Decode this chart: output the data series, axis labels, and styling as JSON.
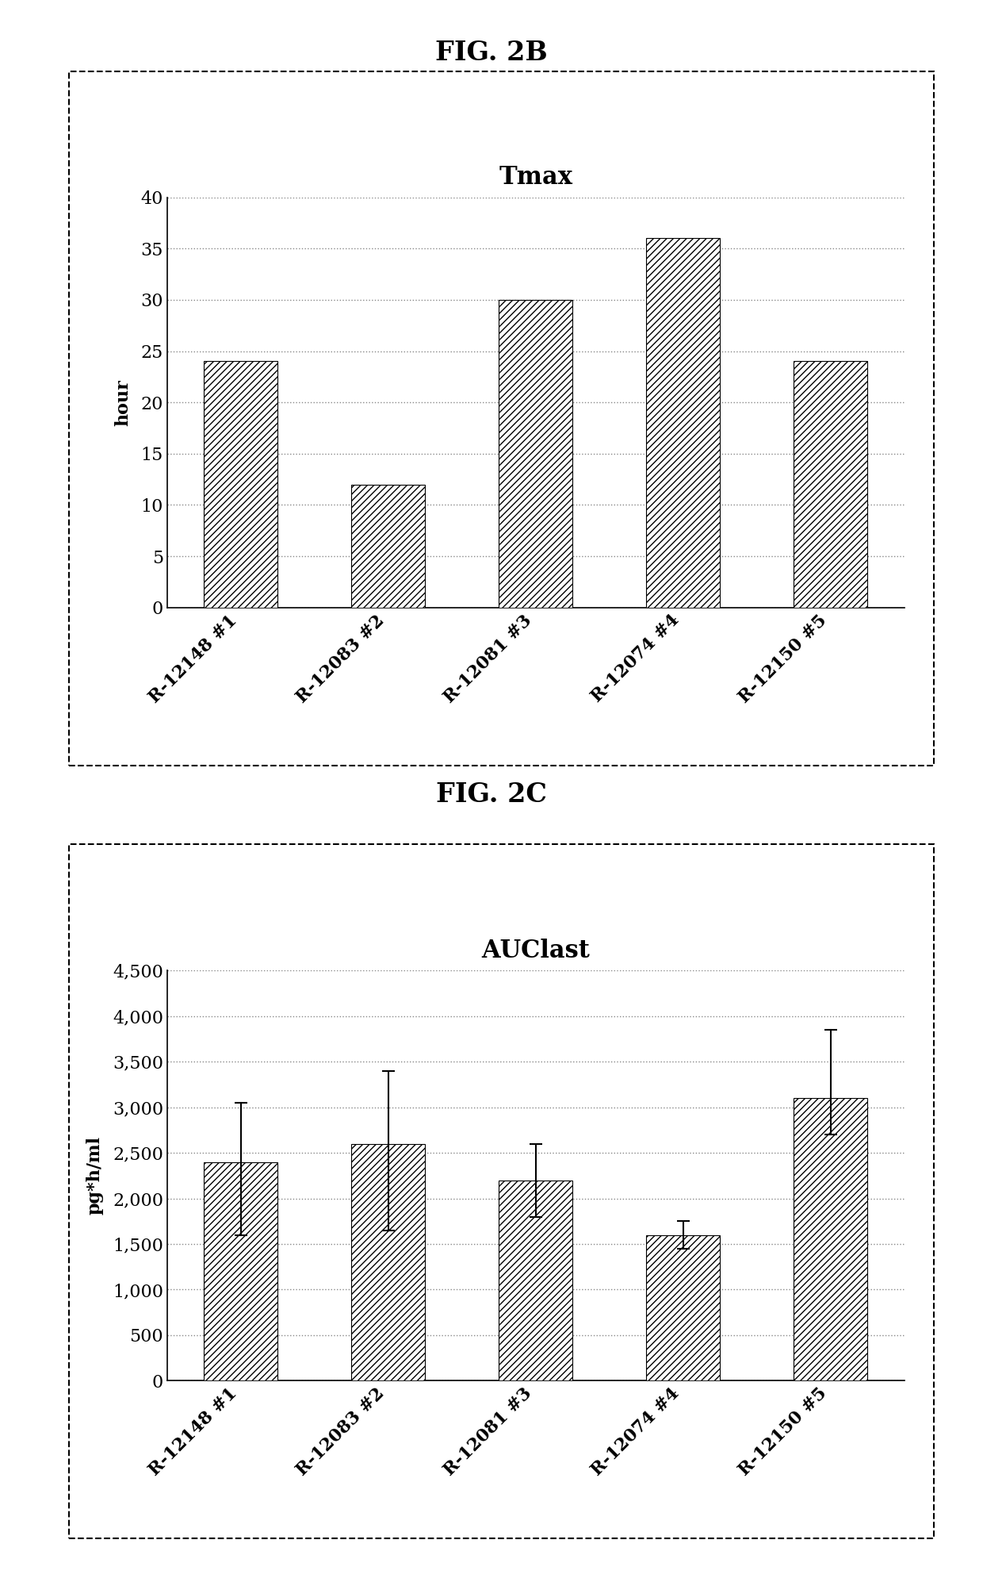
{
  "fig2b_title": "FIG. 2B",
  "fig2b_chart_title": "Tmax",
  "fig2b_ylabel": "hour",
  "fig2b_categories": [
    "R-12148 #1",
    "R-12083 #2",
    "R-12081 #3",
    "R-12074 #4",
    "R-12150 #5"
  ],
  "fig2b_values": [
    24,
    12,
    30,
    36,
    24
  ],
  "fig2b_ylim": [
    0,
    40
  ],
  "fig2b_yticks": [
    0,
    5,
    10,
    15,
    20,
    25,
    30,
    35,
    40
  ],
  "fig2c_title": "FIG. 2C",
  "fig2c_chart_title": "AUClast",
  "fig2c_ylabel": "pg*h/ml",
  "fig2c_categories": [
    "R-12148 #1",
    "R-12083 #2",
    "R-12081 #3",
    "R-12074 #4",
    "R-12150 #5"
  ],
  "fig2c_values": [
    2400,
    2600,
    2200,
    1600,
    3100
  ],
  "fig2c_errors_upper": [
    650,
    800,
    400,
    150,
    750
  ],
  "fig2c_errors_lower": [
    800,
    950,
    400,
    150,
    400
  ],
  "fig2c_ylim": [
    0,
    4500
  ],
  "fig2c_yticks": [
    0,
    500,
    1000,
    1500,
    2000,
    2500,
    3000,
    3500,
    4000,
    4500
  ],
  "hatch_pattern": "////",
  "background_color": "#ffffff",
  "grid_color": "#888888",
  "fig_title_fontsize": 24,
  "chart_title_fontsize": 22,
  "tick_fontsize": 16,
  "ylabel_fontsize": 16,
  "xtick_rotation": 45,
  "bar_width": 0.5
}
